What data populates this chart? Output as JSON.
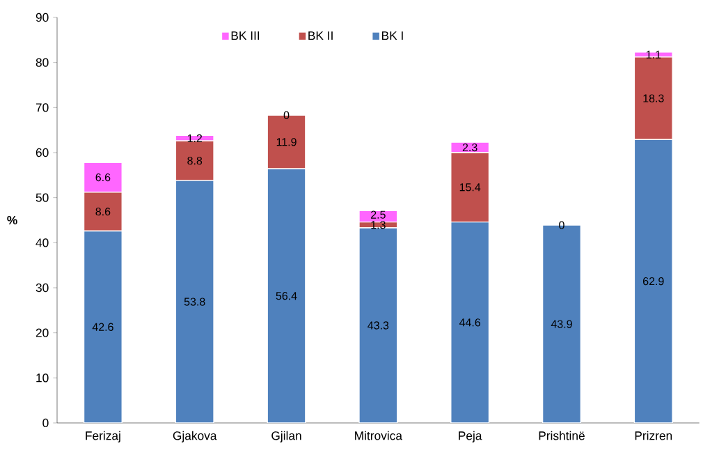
{
  "chart_data": {
    "type": "bar",
    "stacked": true,
    "ylabel": "%",
    "categories": [
      "Ferizaj",
      "Gjakova",
      "Gjilan",
      "Mitrovica",
      "Peja",
      "Prishtinë",
      "Prizren"
    ],
    "series": [
      {
        "name": "BK I",
        "color": "#4f81bd",
        "values": [
          42.6,
          53.8,
          56.4,
          43.3,
          44.6,
          43.9,
          62.9
        ],
        "value_labels": [
          "42.6",
          "53.8",
          "56.4",
          "43.3",
          "44.6",
          "43.9",
          "62.9"
        ]
      },
      {
        "name": "BK II",
        "color": "#c0504d",
        "values": [
          8.6,
          8.8,
          11.9,
          1.3,
          15.4,
          0,
          18.3
        ],
        "value_labels": [
          "8.6",
          "8.8",
          "11.9",
          "1.3",
          "15.4",
          null,
          "18.3"
        ]
      },
      {
        "name": "BK III",
        "color": "#ff66ff",
        "values": [
          6.6,
          1.2,
          0,
          2.5,
          2.3,
          0,
          1.1
        ],
        "value_labels": [
          "6.6",
          "1.2",
          "0",
          "2.5",
          "2.3",
          "0",
          "1.1"
        ]
      }
    ],
    "ylim": [
      0,
      90
    ],
    "yticks": [
      0,
      10,
      20,
      30,
      40,
      50,
      60,
      70,
      80,
      90
    ],
    "grid": false,
    "legend": "top"
  }
}
